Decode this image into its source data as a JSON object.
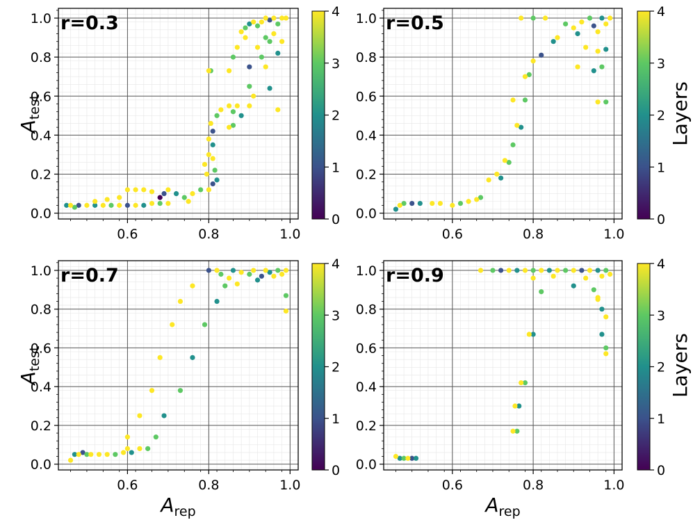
{
  "chart_data": {
    "type": "scatter",
    "color_scale": {
      "label": "Layers",
      "range": [
        0,
        4
      ],
      "ticks": [
        "0",
        "1",
        "2",
        "3",
        "4"
      ],
      "colormap": "viridis",
      "stops": [
        "#440154",
        "#3b528b",
        "#21908c",
        "#5dc863",
        "#fde725"
      ]
    },
    "x_axis": {
      "label_main": "A",
      "label_sub": "rep",
      "ticks": [
        "0.6",
        "0.8",
        "1.0"
      ],
      "tick_values": [
        0.6,
        0.8,
        1.0
      ],
      "range": [
        0.43,
        1.02
      ]
    },
    "y_axis": {
      "label_main": "A",
      "label_sub": "test",
      "ticks": [
        "0.0",
        "0.2",
        "0.4",
        "0.6",
        "0.8",
        "1.0"
      ],
      "tick_values": [
        0,
        0.2,
        0.4,
        0.6,
        0.8,
        1.0
      ],
      "range": [
        -0.03,
        1.05
      ]
    },
    "panels": [
      {
        "label": "r=0.3",
        "points": [
          [
            0.45,
            0.04,
            2
          ],
          [
            0.46,
            0.04,
            4
          ],
          [
            0.47,
            0.03,
            3
          ],
          [
            0.48,
            0.04,
            1
          ],
          [
            0.5,
            0.04,
            4
          ],
          [
            0.52,
            0.04,
            2
          ],
          [
            0.54,
            0.04,
            4
          ],
          [
            0.56,
            0.04,
            3
          ],
          [
            0.58,
            0.04,
            4
          ],
          [
            0.6,
            0.04,
            1
          ],
          [
            0.62,
            0.04,
            4
          ],
          [
            0.64,
            0.04,
            2
          ],
          [
            0.66,
            0.05,
            4
          ],
          [
            0.68,
            0.05,
            3
          ],
          [
            0.7,
            0.05,
            4
          ],
          [
            0.52,
            0.06,
            4
          ],
          [
            0.55,
            0.07,
            4
          ],
          [
            0.58,
            0.08,
            4
          ],
          [
            0.6,
            0.12,
            4
          ],
          [
            0.62,
            0.12,
            4
          ],
          [
            0.64,
            0.12,
            4
          ],
          [
            0.66,
            0.11,
            4
          ],
          [
            0.68,
            0.08,
            0
          ],
          [
            0.69,
            0.1,
            1
          ],
          [
            0.7,
            0.12,
            4
          ],
          [
            0.72,
            0.1,
            2
          ],
          [
            0.74,
            0.08,
            3
          ],
          [
            0.75,
            0.06,
            4
          ],
          [
            0.76,
            0.1,
            4
          ],
          [
            0.78,
            0.12,
            3
          ],
          [
            0.8,
            0.12,
            4
          ],
          [
            0.81,
            0.15,
            1
          ],
          [
            0.82,
            0.17,
            2
          ],
          [
            0.815,
            0.22,
            3
          ],
          [
            0.81,
            0.28,
            4
          ],
          [
            0.81,
            0.35,
            2
          ],
          [
            0.81,
            0.42,
            1
          ],
          [
            0.82,
            0.5,
            3
          ],
          [
            0.83,
            0.53,
            4
          ],
          [
            0.85,
            0.55,
            4
          ],
          [
            0.86,
            0.52,
            3
          ],
          [
            0.87,
            0.55,
            4
          ],
          [
            0.88,
            0.5,
            2
          ],
          [
            0.86,
            0.45,
            3
          ],
          [
            0.85,
            0.44,
            4
          ],
          [
            0.795,
            0.2,
            4
          ],
          [
            0.79,
            0.25,
            4
          ],
          [
            0.8,
            0.3,
            4
          ],
          [
            0.8,
            0.38,
            4
          ],
          [
            0.805,
            0.46,
            4
          ],
          [
            0.8,
            0.73,
            4
          ],
          [
            0.805,
            0.73,
            3
          ],
          [
            0.85,
            0.73,
            4
          ],
          [
            0.86,
            0.8,
            3
          ],
          [
            0.87,
            0.85,
            4
          ],
          [
            0.89,
            0.9,
            4
          ],
          [
            0.9,
            0.75,
            1
          ],
          [
            0.9,
            0.65,
            3
          ],
          [
            0.91,
            0.6,
            4
          ],
          [
            0.9,
            0.55,
            4
          ],
          [
            0.88,
            0.93,
            4
          ],
          [
            0.89,
            0.95,
            3
          ],
          [
            0.9,
            0.97,
            2
          ],
          [
            0.91,
            0.98,
            4
          ],
          [
            0.92,
            0.96,
            3
          ],
          [
            0.93,
            0.98,
            4
          ],
          [
            0.94,
            1.0,
            4
          ],
          [
            0.95,
            0.99,
            1
          ],
          [
            0.96,
            1.0,
            4
          ],
          [
            0.97,
            0.97,
            3
          ],
          [
            0.98,
            1.0,
            4
          ],
          [
            0.99,
            1.0,
            4
          ],
          [
            0.95,
            0.88,
            3
          ],
          [
            0.96,
            0.92,
            4
          ],
          [
            0.97,
            0.82,
            2
          ],
          [
            0.93,
            0.8,
            3
          ],
          [
            0.94,
            0.75,
            4
          ],
          [
            0.95,
            0.64,
            2
          ],
          [
            0.97,
            0.53,
            4
          ],
          [
            0.92,
            0.85,
            4
          ],
          [
            0.94,
            0.9,
            3
          ],
          [
            0.98,
            0.88,
            4
          ]
        ]
      },
      {
        "label": "r=0.5",
        "points": [
          [
            0.46,
            0.02,
            2
          ],
          [
            0.47,
            0.04,
            4
          ],
          [
            0.48,
            0.05,
            3
          ],
          [
            0.5,
            0.05,
            1
          ],
          [
            0.52,
            0.05,
            2
          ],
          [
            0.55,
            0.05,
            4
          ],
          [
            0.57,
            0.05,
            4
          ],
          [
            0.6,
            0.04,
            4
          ],
          [
            0.62,
            0.05,
            3
          ],
          [
            0.64,
            0.06,
            4
          ],
          [
            0.66,
            0.07,
            4
          ],
          [
            0.67,
            0.08,
            3
          ],
          [
            0.69,
            0.17,
            4
          ],
          [
            0.71,
            0.2,
            4
          ],
          [
            0.72,
            0.18,
            2
          ],
          [
            0.73,
            0.27,
            4
          ],
          [
            0.74,
            0.26,
            3
          ],
          [
            0.75,
            0.35,
            3
          ],
          [
            0.76,
            0.45,
            4
          ],
          [
            0.77,
            0.44,
            2
          ],
          [
            0.75,
            0.58,
            4
          ],
          [
            0.78,
            0.58,
            3
          ],
          [
            0.78,
            0.7,
            4
          ],
          [
            0.79,
            0.71,
            3
          ],
          [
            0.8,
            0.78,
            4
          ],
          [
            0.82,
            0.81,
            1
          ],
          [
            0.77,
            1.0,
            4
          ],
          [
            0.8,
            1.0,
            3
          ],
          [
            0.83,
            1.0,
            4
          ],
          [
            0.85,
            0.88,
            2
          ],
          [
            0.86,
            0.9,
            4
          ],
          [
            0.88,
            0.97,
            3
          ],
          [
            0.9,
            0.95,
            4
          ],
          [
            0.91,
            0.92,
            2
          ],
          [
            0.92,
            0.98,
            4
          ],
          [
            0.94,
            1.0,
            3
          ],
          [
            0.95,
            0.96,
            1
          ],
          [
            0.96,
            0.93,
            4
          ],
          [
            0.97,
            1.0,
            2
          ],
          [
            0.98,
            0.97,
            4
          ],
          [
            0.99,
            1.0,
            4
          ],
          [
            0.91,
            0.75,
            4
          ],
          [
            0.95,
            0.73,
            2
          ],
          [
            0.97,
            0.75,
            3
          ],
          [
            0.96,
            0.83,
            4
          ],
          [
            0.98,
            0.84,
            2
          ],
          [
            0.96,
            0.57,
            4
          ],
          [
            0.98,
            0.57,
            3
          ],
          [
            0.93,
            0.85,
            4
          ]
        ]
      },
      {
        "label": "r=0.7",
        "points": [
          [
            0.46,
            0.02,
            4
          ],
          [
            0.47,
            0.05,
            2
          ],
          [
            0.48,
            0.05,
            4
          ],
          [
            0.49,
            0.06,
            1
          ],
          [
            0.5,
            0.05,
            3
          ],
          [
            0.51,
            0.05,
            4
          ],
          [
            0.53,
            0.05,
            4
          ],
          [
            0.55,
            0.05,
            4
          ],
          [
            0.57,
            0.05,
            3
          ],
          [
            0.59,
            0.06,
            4
          ],
          [
            0.6,
            0.08,
            4
          ],
          [
            0.61,
            0.06,
            2
          ],
          [
            0.63,
            0.08,
            4
          ],
          [
            0.65,
            0.08,
            3
          ],
          [
            0.6,
            0.14,
            4
          ],
          [
            0.63,
            0.25,
            4
          ],
          [
            0.66,
            0.38,
            4
          ],
          [
            0.68,
            0.55,
            4
          ],
          [
            0.71,
            0.72,
            4
          ],
          [
            0.73,
            0.84,
            4
          ],
          [
            0.76,
            0.92,
            4
          ],
          [
            0.67,
            0.14,
            3
          ],
          [
            0.69,
            0.25,
            2
          ],
          [
            0.73,
            0.38,
            3
          ],
          [
            0.76,
            0.55,
            2
          ],
          [
            0.79,
            0.72,
            3
          ],
          [
            0.82,
            0.84,
            2
          ],
          [
            0.8,
            1.0,
            1
          ],
          [
            0.82,
            1.0,
            4
          ],
          [
            0.83,
            0.98,
            3
          ],
          [
            0.85,
            0.96,
            4
          ],
          [
            0.86,
            1.0,
            2
          ],
          [
            0.88,
            0.99,
            4
          ],
          [
            0.9,
            0.98,
            3
          ],
          [
            0.91,
            1.0,
            4
          ],
          [
            0.93,
            0.97,
            1
          ],
          [
            0.94,
            1.0,
            4
          ],
          [
            0.95,
            0.99,
            2
          ],
          [
            0.96,
            0.97,
            4
          ],
          [
            0.97,
            1.0,
            3
          ],
          [
            0.98,
            0.98,
            4
          ],
          [
            0.99,
            1.0,
            4
          ],
          [
            0.84,
            0.92,
            3
          ],
          [
            0.87,
            0.93,
            4
          ],
          [
            0.92,
            0.95,
            2
          ],
          [
            0.99,
            0.87,
            3
          ],
          [
            0.99,
            0.79,
            4
          ]
        ]
      },
      {
        "label": "r=0.9",
        "points": [
          [
            0.46,
            0.04,
            4
          ],
          [
            0.47,
            0.03,
            2
          ],
          [
            0.48,
            0.03,
            3
          ],
          [
            0.49,
            0.03,
            4
          ],
          [
            0.5,
            0.03,
            1
          ],
          [
            0.51,
            0.03,
            2
          ],
          [
            0.75,
            0.17,
            4
          ],
          [
            0.755,
            0.3,
            4
          ],
          [
            0.77,
            0.42,
            4
          ],
          [
            0.79,
            0.67,
            4
          ],
          [
            0.76,
            0.17,
            3
          ],
          [
            0.765,
            0.3,
            2
          ],
          [
            0.78,
            0.42,
            3
          ],
          [
            0.8,
            0.67,
            2
          ],
          [
            0.67,
            1.0,
            4
          ],
          [
            0.7,
            1.0,
            3
          ],
          [
            0.72,
            1.0,
            1
          ],
          [
            0.74,
            1.0,
            4
          ],
          [
            0.76,
            1.0,
            2
          ],
          [
            0.78,
            1.0,
            4
          ],
          [
            0.8,
            1.0,
            3
          ],
          [
            0.82,
            1.0,
            4
          ],
          [
            0.84,
            1.0,
            2
          ],
          [
            0.86,
            1.0,
            4
          ],
          [
            0.88,
            1.0,
            3
          ],
          [
            0.9,
            1.0,
            4
          ],
          [
            0.92,
            1.0,
            1
          ],
          [
            0.94,
            1.0,
            4
          ],
          [
            0.96,
            1.0,
            2
          ],
          [
            0.97,
            0.97,
            4
          ],
          [
            0.98,
            1.0,
            3
          ],
          [
            0.99,
            0.98,
            4
          ],
          [
            0.8,
            0.96,
            4
          ],
          [
            0.82,
            0.89,
            3
          ],
          [
            0.85,
            0.97,
            4
          ],
          [
            0.9,
            0.92,
            2
          ],
          [
            0.93,
            0.96,
            4
          ],
          [
            0.95,
            0.9,
            3
          ],
          [
            0.96,
            0.85,
            4
          ],
          [
            0.97,
            0.8,
            2
          ],
          [
            0.98,
            0.76,
            4
          ],
          [
            0.98,
            0.6,
            3
          ],
          [
            0.98,
            0.57,
            4
          ],
          [
            0.97,
            0.67,
            2
          ],
          [
            0.96,
            0.86,
            4
          ]
        ]
      }
    ]
  }
}
